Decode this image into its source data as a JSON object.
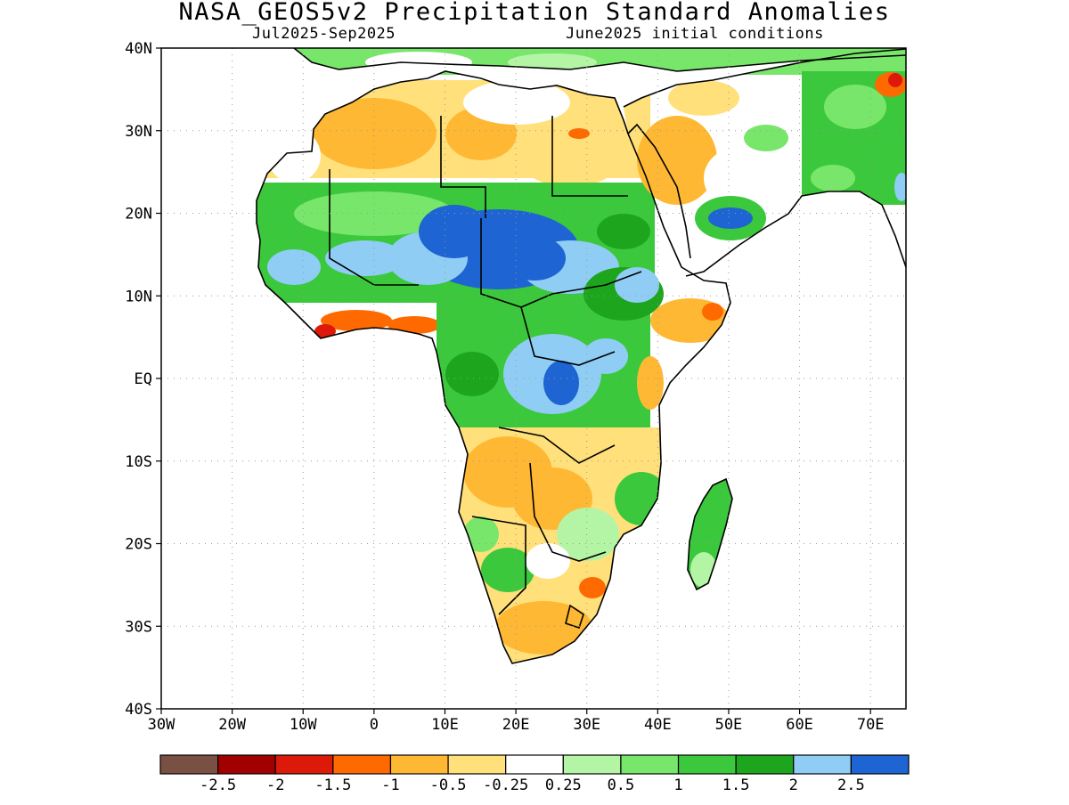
{
  "title": "NASA_GEOS5v2 Precipitation Standard Anomalies",
  "subtitle_left": "Jul2025-Sep2025",
  "subtitle_right": "June2025 initial conditions",
  "map": {
    "lat_labels": [
      "40N",
      "30N",
      "20N",
      "10N",
      "EQ",
      "10S",
      "20S",
      "30S",
      "40S"
    ],
    "lon_labels": [
      "30W",
      "20W",
      "10W",
      "0",
      "10E",
      "20E",
      "30E",
      "40E",
      "50E",
      "60E",
      "70E"
    ],
    "grid": "dotted"
  },
  "colorbar": {
    "colors": [
      "#7b5044",
      "#a00000",
      "#dd1a0a",
      "#ff6a00",
      "#ffb833",
      "#ffe07a",
      "#ffffff",
      "#b4f5a5",
      "#78e66a",
      "#3cc83c",
      "#1ea51e",
      "#90cdf5",
      "#1e64d2"
    ],
    "labels": [
      "-2.5",
      "-2",
      "-1.5",
      "-1",
      "-0.5",
      "-0.25",
      "0.25",
      "0.5",
      "1",
      "1.5",
      "2",
      "2.5"
    ]
  }
}
